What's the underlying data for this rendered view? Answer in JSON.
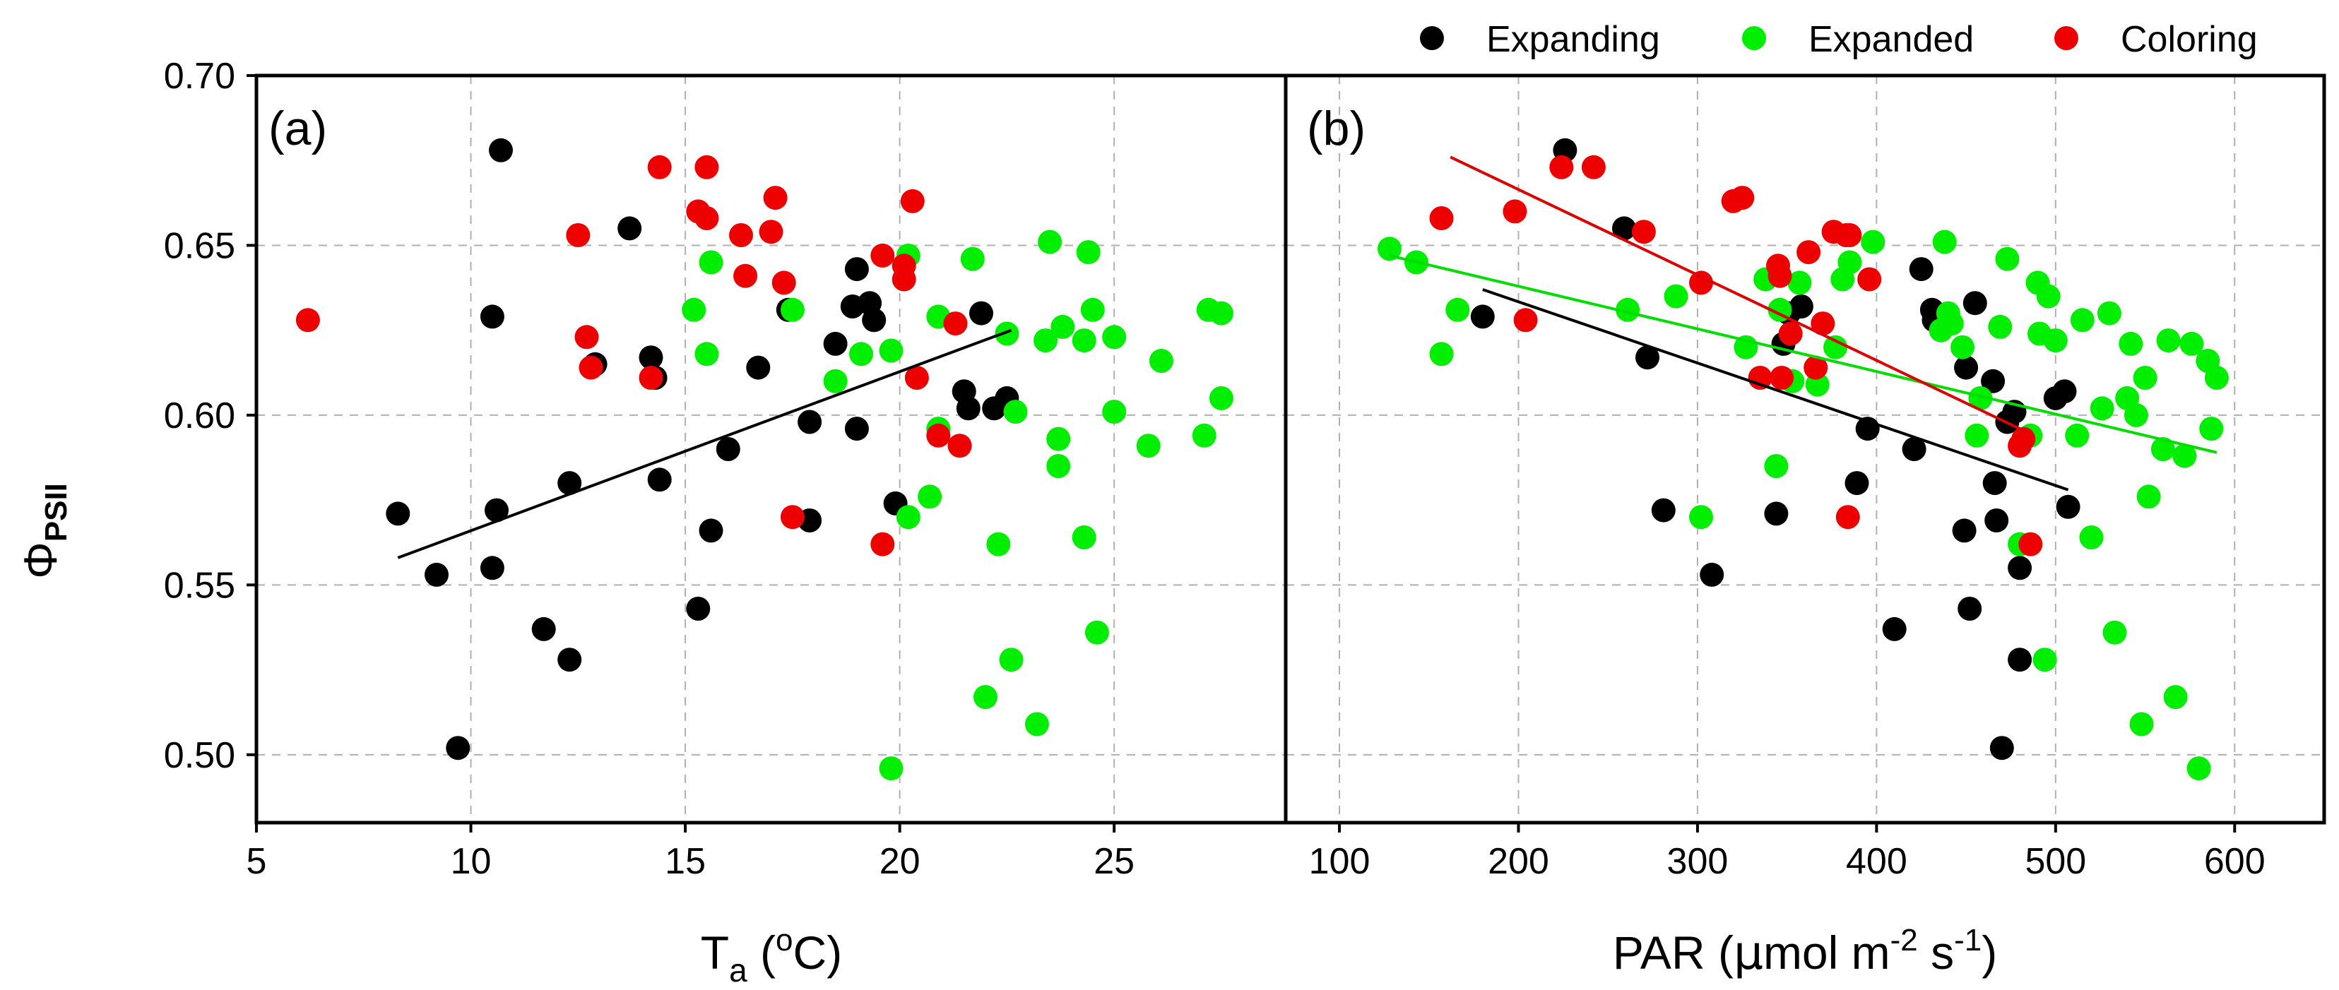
{
  "chart_data": [
    {
      "type": "scatter",
      "panel_label": "(a)",
      "xlabel": "T",
      "xlabel_sub": "a",
      "xlabel_pre": " (",
      "xlabel_sup": "o",
      "xlabel_post": "C)",
      "ylabel_symbol": "Φ",
      "ylabel_sub": "PSII",
      "xlim": [
        5,
        29
      ],
      "ylim": [
        0.48,
        0.7
      ],
      "xticks": [
        "5",
        "10",
        "15",
        "20",
        "25"
      ],
      "xtick_values": [
        5,
        10,
        15,
        20,
        25
      ],
      "yticks": [
        "0.50",
        "0.55",
        "0.60",
        "0.65",
        "0.70"
      ],
      "ytick_values": [
        0.5,
        0.55,
        0.6,
        0.65,
        0.7
      ],
      "grid": true,
      "series": [
        {
          "name": "Expanding",
          "x": [
            8.3,
            9.2,
            9.7,
            10.5,
            10.5,
            10.6,
            10.7,
            11.7,
            12.3,
            12.3,
            12.9,
            13.7,
            14.2,
            14.3,
            14.4,
            15.3,
            15.6,
            16.0,
            16.7,
            17.4,
            17.9,
            17.9,
            18.5,
            18.9,
            19.0,
            19.0,
            19.3,
            19.4,
            19.9,
            21.5,
            21.6,
            21.9,
            22.2,
            22.5
          ],
          "y": [
            0.571,
            0.553,
            0.502,
            0.629,
            0.555,
            0.572,
            0.678,
            0.537,
            0.58,
            0.528,
            0.615,
            0.655,
            0.617,
            0.611,
            0.581,
            0.543,
            0.566,
            0.59,
            0.614,
            0.631,
            0.598,
            0.569,
            0.621,
            0.632,
            0.596,
            0.643,
            0.633,
            0.628,
            0.574,
            0.607,
            0.602,
            0.63,
            0.602,
            0.605
          ]
        },
        {
          "name": "Expanded",
          "x": [
            15.2,
            15.5,
            15.6,
            17.5,
            18.5,
            19.1,
            19.8,
            19.8,
            20.2,
            20.2,
            20.7,
            20.9,
            20.9,
            21.7,
            22.0,
            22.3,
            22.5,
            22.6,
            22.7,
            23.2,
            23.4,
            23.5,
            23.7,
            23.7,
            23.8,
            24.3,
            24.3,
            24.4,
            24.5,
            24.6,
            25.0,
            25.0,
            25.8,
            26.1,
            27.1,
            27.2,
            27.5,
            27.5
          ],
          "y": [
            0.631,
            0.618,
            0.645,
            0.631,
            0.61,
            0.618,
            0.496,
            0.619,
            0.647,
            0.57,
            0.576,
            0.596,
            0.629,
            0.646,
            0.517,
            0.562,
            0.624,
            0.528,
            0.601,
            0.509,
            0.622,
            0.651,
            0.585,
            0.593,
            0.626,
            0.564,
            0.622,
            0.648,
            0.631,
            0.536,
            0.623,
            0.601,
            0.591,
            0.616,
            0.594,
            0.631,
            0.63,
            0.605
          ]
        },
        {
          "name": "Coloring",
          "x": [
            6.2,
            12.5,
            12.7,
            12.8,
            14.2,
            14.4,
            15.3,
            15.5,
            15.5,
            16.3,
            16.4,
            17.0,
            17.1,
            17.3,
            17.5,
            19.6,
            19.6,
            20.1,
            20.1,
            20.3,
            20.4,
            20.9,
            21.3,
            21.4
          ],
          "y": [
            0.628,
            0.653,
            0.623,
            0.614,
            0.611,
            0.673,
            0.66,
            0.673,
            0.658,
            0.653,
            0.641,
            0.654,
            0.664,
            0.639,
            0.57,
            0.562,
            0.647,
            0.644,
            0.64,
            0.663,
            0.611,
            0.594,
            0.627,
            0.591
          ]
        }
      ],
      "fit_lines": [
        {
          "series": "Expanding",
          "x": [
            8.3,
            22.6
          ],
          "y": [
            0.558,
            0.625
          ]
        }
      ]
    },
    {
      "type": "scatter",
      "panel_label": "(b)",
      "xlabel": "PAR (",
      "xlabel_mu": "μ",
      "xlabel_mid": "mol m",
      "xlabel_sup1": "-2",
      "xlabel_mid2": " s",
      "xlabel_sup2": "-1",
      "xlabel_post": ")",
      "xlim": [
        70,
        650
      ],
      "ylim": [
        0.48,
        0.7
      ],
      "xticks": [
        "100",
        "200",
        "300",
        "400",
        "500",
        "600"
      ],
      "xtick_values": [
        100,
        200,
        300,
        400,
        500,
        600
      ],
      "yticks": [
        "0.50",
        "0.55",
        "0.60",
        "0.65",
        "0.70"
      ],
      "ytick_values": [
        0.5,
        0.55,
        0.6,
        0.65,
        0.7
      ],
      "grid": true,
      "series": [
        {
          "name": "Expanding",
          "x": [
            180,
            226,
            259,
            272,
            281,
            308,
            344,
            348,
            351,
            358,
            389,
            395,
            410,
            421,
            425,
            431,
            432,
            449,
            450,
            452,
            455,
            465,
            466,
            467,
            470,
            473,
            477,
            480,
            480,
            500,
            505,
            507
          ],
          "y": [
            0.629,
            0.678,
            0.655,
            0.617,
            0.572,
            0.553,
            0.571,
            0.621,
            0.63,
            0.632,
            0.58,
            0.596,
            0.537,
            0.59,
            0.643,
            0.631,
            0.628,
            0.566,
            0.614,
            0.543,
            0.633,
            0.61,
            0.58,
            0.569,
            0.502,
            0.598,
            0.601,
            0.528,
            0.555,
            0.605,
            0.607,
            0.573
          ]
        },
        {
          "name": "Expanded",
          "x": [
            128,
            143,
            157,
            166,
            261,
            288,
            302,
            327,
            338,
            344,
            346,
            353,
            357,
            367,
            377,
            381,
            385,
            398,
            436,
            438,
            440,
            442,
            448,
            456,
            458,
            469,
            473,
            480,
            486,
            490,
            491,
            494,
            496,
            500,
            512,
            515,
            520,
            526,
            530,
            533,
            540,
            542,
            545,
            548,
            550,
            552,
            560,
            563,
            567,
            572,
            576,
            580,
            585,
            587,
            590
          ],
          "y": [
            0.649,
            0.645,
            0.618,
            0.631,
            0.631,
            0.635,
            0.57,
            0.62,
            0.64,
            0.585,
            0.631,
            0.61,
            0.639,
            0.609,
            0.62,
            0.64,
            0.645,
            0.651,
            0.625,
            0.651,
            0.63,
            0.627,
            0.62,
            0.594,
            0.605,
            0.626,
            0.646,
            0.562,
            0.594,
            0.639,
            0.624,
            0.528,
            0.635,
            0.622,
            0.594,
            0.628,
            0.564,
            0.602,
            0.63,
            0.536,
            0.605,
            0.621,
            0.6,
            0.509,
            0.611,
            0.576,
            0.59,
            0.622,
            0.517,
            0.588,
            0.621,
            0.496,
            0.616,
            0.596,
            0.611
          ]
        },
        {
          "name": "Coloring",
          "x": [
            157,
            198,
            204,
            224,
            242,
            270,
            302,
            320,
            325,
            335,
            345,
            346,
            347,
            352,
            362,
            366,
            370,
            376,
            383,
            384,
            385,
            396,
            480,
            482,
            486
          ],
          "y": [
            0.658,
            0.66,
            0.628,
            0.673,
            0.673,
            0.654,
            0.639,
            0.663,
            0.664,
            0.611,
            0.644,
            0.641,
            0.611,
            0.624,
            0.648,
            0.614,
            0.627,
            0.654,
            0.653,
            0.57,
            0.653,
            0.64,
            0.591,
            0.593,
            0.562
          ]
        }
      ],
      "fit_lines": [
        {
          "series": "Expanding",
          "x": [
            180,
            507
          ],
          "y": [
            0.637,
            0.578
          ]
        },
        {
          "series": "Expanded",
          "x": [
            128,
            590
          ],
          "y": [
            0.647,
            0.589
          ]
        },
        {
          "series": "Coloring",
          "x": [
            162,
            484
          ],
          "y": [
            0.676,
            0.595
          ]
        }
      ]
    }
  ],
  "legend": {
    "placement": "top-right",
    "items": [
      {
        "label": "Expanding",
        "color": "#000000"
      },
      {
        "label": "Expanded",
        "color": "#00ee00"
      },
      {
        "label": "Coloring",
        "color": "#ee0000"
      }
    ]
  },
  "colors": {
    "Expanding": "#000000",
    "Expanded": "#00ee00",
    "Coloring": "#ee0000",
    "fit_Expanding": "#000000",
    "fit_Expanded": "#00dd00",
    "fit_Coloring": "#dd0000"
  }
}
